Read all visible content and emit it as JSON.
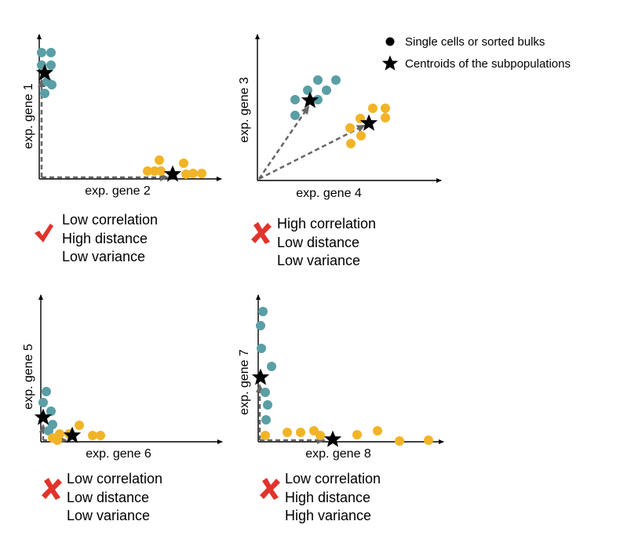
{
  "colors": {
    "teal": "#5a9ea6",
    "orange": "#f2b427",
    "check": "#e0342c",
    "cross": "#e0342c",
    "arrow": "#666666",
    "axis": "#000000"
  },
  "legend": {
    "dot_label": "Single cells or sorted bulks",
    "star_label": "Centroids of the subpopulations",
    "dot_icon": "circle-icon",
    "star_icon": "star-icon"
  },
  "panels": [
    {
      "id": "p1",
      "xlabel": "exp. gene 2",
      "ylabel": "exp. gene 1",
      "verdict_icon": "checkmark-icon",
      "verdict": [
        "Low correlation",
        "High distance",
        "Low variance"
      ]
    },
    {
      "id": "p2",
      "xlabel": "exp. gene 4",
      "ylabel": "exp. gene 3",
      "verdict_icon": "cross-icon",
      "verdict": [
        "High correlation",
        "Low distance",
        "Low variance"
      ]
    },
    {
      "id": "p3",
      "xlabel": "exp. gene 6",
      "ylabel": "exp. gene 5",
      "verdict_icon": "cross-icon",
      "verdict": [
        "Low correlation",
        "Low distance",
        "Low variance"
      ]
    },
    {
      "id": "p4",
      "xlabel": "exp. gene 8",
      "ylabel": "exp. gene 7",
      "verdict_icon": "cross-icon",
      "verdict": [
        "Low correlation",
        "High distance",
        "High variance"
      ]
    }
  ]
}
